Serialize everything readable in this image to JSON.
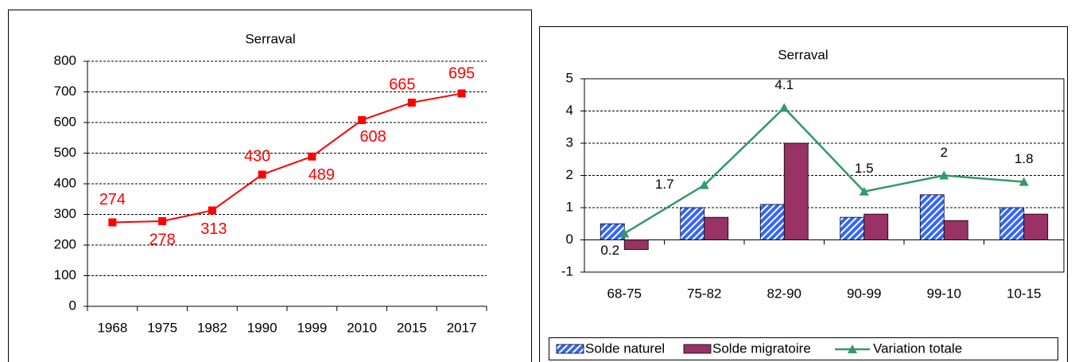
{
  "chart_data": [
    {
      "type": "line",
      "title": "Serraval",
      "categories": [
        "1968",
        "1975",
        "1982",
        "1990",
        "1999",
        "2010",
        "2015",
        "2017"
      ],
      "values": [
        274,
        278,
        313,
        430,
        489,
        608,
        665,
        695
      ],
      "color": "#ff0000",
      "ylim": [
        0,
        800
      ],
      "yticks": [
        0,
        100,
        200,
        300,
        400,
        500,
        600,
        700,
        800
      ],
      "grid": true
    },
    {
      "type": "bar",
      "title": "Serraval",
      "categories": [
        "68-75",
        "75-82",
        "82-90",
        "90-99",
        "99-10",
        "10-15"
      ],
      "series": [
        {
          "name": "Solde naturel",
          "type": "bar",
          "color": "#3366ff",
          "values": [
            0.5,
            1.0,
            1.1,
            0.7,
            1.4,
            1.0
          ]
        },
        {
          "name": "Solde migratoire",
          "type": "bar",
          "color": "#993366",
          "values": [
            -0.3,
            0.7,
            3.0,
            0.8,
            0.6,
            0.8
          ]
        },
        {
          "name": "Variation totale",
          "type": "line",
          "color": "#339966",
          "values": [
            0.2,
            1.7,
            4.1,
            1.5,
            2,
            1.8
          ]
        }
      ],
      "ylim": [
        -1,
        5
      ],
      "yticks": [
        -1,
        0,
        1,
        2,
        3,
        4,
        5
      ],
      "grid": true,
      "legend": "bottom"
    }
  ]
}
